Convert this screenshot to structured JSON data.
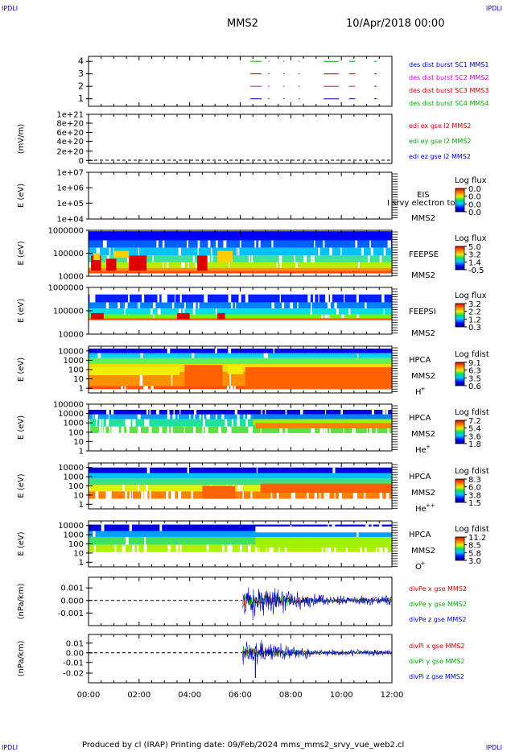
{
  "header": {
    "corner_tl": "IPDLI",
    "corner_tr": "IPDLI",
    "corner_bl": "IPDLI",
    "corner_br": "IPDLI",
    "spacecraft": "MMS2",
    "datetime": "10/Apr/2018 00:00"
  },
  "footer": {
    "text": "Produced by cl (IRAP)   Printing date: 09/Feb/2024   mms_mms2_srvy_vue_web2.cl"
  },
  "chart_data": {
    "type": "heatmap",
    "x_axis": {
      "ticks": [
        "00:00",
        "02:00",
        "04:00",
        "06:00",
        "08:00",
        "10:00",
        "12:00"
      ],
      "range_hours": [
        0,
        12
      ]
    },
    "panels": [
      {
        "id": "burst",
        "type": "scatter",
        "y_ticks": [
          "4",
          "3",
          "2",
          "1"
        ],
        "legend": [
          {
            "text": "des dist burst SC1 MMS1",
            "color": "#0000cc"
          },
          {
            "text": "des dist burst SC2 MMS2",
            "color": "#cc00cc"
          },
          {
            "text": "des dist burst SC3 MMS3",
            "color": "#cc0000"
          },
          {
            "text": "des dist burst SC4 MMS4",
            "color": "#00aa00"
          }
        ],
        "segments_hours": [
          [
            6.4,
            6.85
          ],
          [
            7.1,
            7.15
          ],
          [
            7.7,
            7.75
          ],
          [
            8.3,
            8.35
          ],
          [
            9.3,
            9.9
          ],
          [
            10.3,
            10.55
          ],
          [
            11.3,
            11.4
          ]
        ]
      },
      {
        "id": "edi",
        "type": "line",
        "ylabel": "(mV/m)",
        "y_ticks": [
          "1e+21",
          "8e+20",
          "6e+20",
          "4e+20",
          "2e+20",
          "0"
        ],
        "legend": [
          {
            "text": "edi ex gse l2 MMS2",
            "color": "#cc0000"
          },
          {
            "text": "edi ey gse l2 MMS2",
            "color": "#00aa00"
          },
          {
            "text": "edi ez gse l2 MMS2",
            "color": "#0000cc"
          }
        ]
      },
      {
        "id": "eis",
        "type": "heatmap",
        "ylabel": "E (eV)",
        "y_ticks": [
          "1e+07",
          "1e+06",
          "1e+05",
          "1e+04"
        ],
        "instrument": "EIS",
        "instrument_extra": "I srvy electron to",
        "sc": "MMS2",
        "colorbar_title": "Log flux",
        "colorbar_ticks": [
          "0.0",
          "0.0",
          "0.0",
          "0.0"
        ]
      },
      {
        "id": "feepse",
        "type": "heatmap",
        "ylabel": "E (eV)",
        "y_ticks": [
          "1000000",
          "100000",
          "10000"
        ],
        "instrument": "FEEPSE",
        "sc": "MMS2",
        "colorbar_title": "Log flux",
        "colorbar_ticks": [
          "5.0",
          "3.2",
          "1.4",
          "-0.5"
        ]
      },
      {
        "id": "feepsi",
        "type": "heatmap",
        "ylabel": "E (eV)",
        "y_ticks": [
          "1000000",
          "100000",
          "10000"
        ],
        "instrument": "FEEPSI",
        "sc": "MMS2",
        "colorbar_title": "Log flux",
        "colorbar_ticks": [
          "3.2",
          "2.2",
          "1.2",
          "0.3"
        ]
      },
      {
        "id": "hpca_h",
        "type": "heatmap",
        "ylabel": "E (eV)",
        "y_ticks": [
          "10000",
          "1000",
          "100",
          "10",
          "1"
        ],
        "instrument": "HPCA",
        "sc": "MMS2",
        "species": "H",
        "species_sup": "+",
        "colorbar_title": "Log fdist",
        "colorbar_ticks": [
          "9.1",
          "6.3",
          "3.5",
          "0.6"
        ]
      },
      {
        "id": "hpca_he",
        "type": "heatmap",
        "ylabel": "E (eV)",
        "y_ticks": [
          "100000",
          "10000",
          "1000",
          "100",
          "10",
          "1"
        ],
        "instrument": "HPCA",
        "sc": "MMS2",
        "species": "He",
        "species_sup": "+",
        "colorbar_title": "Log fdist",
        "colorbar_ticks": [
          "7.2",
          "5.4",
          "3.6",
          "1.8"
        ]
      },
      {
        "id": "hpca_he2",
        "type": "heatmap",
        "ylabel": "E (eV)",
        "y_ticks": [
          "10000",
          "1000",
          "100",
          "10",
          "1"
        ],
        "instrument": "HPCA",
        "sc": "MMS2",
        "species": "He",
        "species_sup": "++",
        "colorbar_title": "Log fdist",
        "colorbar_ticks": [
          "8.3",
          "6.0",
          "3.8",
          "1.5"
        ]
      },
      {
        "id": "hpca_o",
        "type": "heatmap",
        "ylabel": "E (eV)",
        "y_ticks": [
          "10000",
          "1000",
          "100",
          "10",
          "1"
        ],
        "instrument": "HPCA",
        "sc": "MMS2",
        "species": "O",
        "species_sup": "+",
        "colorbar_title": "Log fdist",
        "colorbar_ticks": [
          "11.2",
          "8.5",
          "5.8",
          "3.0"
        ]
      },
      {
        "id": "divpe",
        "type": "line",
        "ylabel": "(nPa/km)",
        "y_ticks": [
          "0.001",
          "0.000",
          "-0.001"
        ],
        "y_values": [
          0.001,
          0.0,
          -0.001
        ],
        "legend": [
          {
            "text": "divPe x gse MMS2",
            "color": "#cc0000"
          },
          {
            "text": "divPe y gse MMS2",
            "color": "#00aa00"
          },
          {
            "text": "divPe z gse MMS2",
            "color": "#0000cc"
          }
        ],
        "data_start_hours": 6.1
      },
      {
        "id": "divpi",
        "type": "line",
        "ylabel": "(nPa/km)",
        "y_ticks": [
          "0.01",
          "0.00",
          "-0.01",
          "-0.02"
        ],
        "y_values": [
          0.01,
          0.0,
          -0.01,
          -0.02
        ],
        "legend": [
          {
            "text": "divPi x gse MMS2",
            "color": "#cc0000"
          },
          {
            "text": "divPi y gse MMS2",
            "color": "#00aa00"
          },
          {
            "text": "divPi z gse MMS2",
            "color": "#0000cc"
          }
        ],
        "data_start_hours": 6.1
      }
    ]
  }
}
